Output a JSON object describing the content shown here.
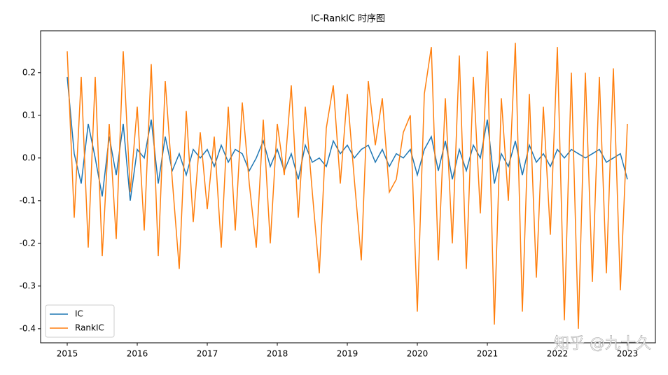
{
  "chart_data": {
    "type": "line",
    "title": "IC-RankIC 时序图",
    "x": [
      2015.0,
      2015.1,
      2015.2,
      2015.3,
      2015.4,
      2015.5,
      2015.6,
      2015.7,
      2015.8,
      2015.9,
      2016.0,
      2016.1,
      2016.2,
      2016.3,
      2016.4,
      2016.5,
      2016.6,
      2016.7,
      2016.8,
      2016.9,
      2017.0,
      2017.1,
      2017.2,
      2017.3,
      2017.4,
      2017.5,
      2017.6,
      2017.7,
      2017.8,
      2017.9,
      2018.0,
      2018.1,
      2018.2,
      2018.3,
      2018.4,
      2018.5,
      2018.6,
      2018.7,
      2018.8,
      2018.9,
      2019.0,
      2019.1,
      2019.2,
      2019.3,
      2019.4,
      2019.5,
      2019.6,
      2019.7,
      2019.8,
      2019.9,
      2020.0,
      2020.1,
      2020.2,
      2020.3,
      2020.4,
      2020.5,
      2020.6,
      2020.7,
      2020.8,
      2020.9,
      2021.0,
      2021.1,
      2021.2,
      2021.3,
      2021.4,
      2021.5,
      2021.6,
      2021.7,
      2021.8,
      2021.9,
      2022.0,
      2022.1,
      2022.2,
      2022.3,
      2022.4,
      2022.5,
      2022.6,
      2022.7,
      2022.8,
      2022.9,
      2023.0
    ],
    "series": [
      {
        "name": "IC",
        "color": "#1f77b4",
        "values": [
          0.19,
          0.01,
          -0.06,
          0.08,
          0.0,
          -0.09,
          0.05,
          -0.04,
          0.08,
          -0.1,
          0.02,
          0.0,
          0.09,
          -0.06,
          0.05,
          -0.03,
          0.01,
          -0.04,
          0.02,
          0.0,
          0.02,
          -0.02,
          0.03,
          -0.01,
          0.02,
          0.01,
          -0.03,
          0.0,
          0.04,
          -0.02,
          0.02,
          -0.03,
          0.01,
          -0.05,
          0.03,
          -0.01,
          0.0,
          -0.02,
          0.04,
          0.01,
          0.03,
          0.0,
          0.02,
          0.03,
          -0.01,
          0.02,
          -0.02,
          0.01,
          0.0,
          0.02,
          -0.04,
          0.02,
          0.05,
          -0.03,
          0.04,
          -0.05,
          0.02,
          -0.03,
          0.03,
          0.0,
          0.09,
          -0.06,
          0.01,
          -0.02,
          0.04,
          -0.04,
          0.03,
          -0.01,
          0.01,
          -0.02,
          0.02,
          0.0,
          0.02,
          0.01,
          0.0,
          0.01,
          0.02,
          -0.01,
          0.0,
          0.01,
          -0.05
        ]
      },
      {
        "name": "RankIC",
        "color": "#ff7f0e",
        "values": [
          0.25,
          -0.14,
          0.19,
          -0.21,
          0.19,
          -0.23,
          0.08,
          -0.19,
          0.25,
          -0.08,
          0.12,
          -0.17,
          0.22,
          -0.23,
          0.18,
          -0.05,
          -0.26,
          0.11,
          -0.15,
          0.06,
          -0.12,
          0.05,
          -0.21,
          0.12,
          -0.17,
          0.13,
          -0.06,
          -0.21,
          0.09,
          -0.2,
          0.08,
          -0.04,
          0.17,
          -0.14,
          0.12,
          -0.08,
          -0.27,
          0.07,
          0.17,
          -0.06,
          0.15,
          -0.05,
          -0.24,
          0.18,
          0.03,
          0.14,
          -0.08,
          -0.05,
          0.06,
          0.1,
          -0.36,
          0.15,
          0.26,
          -0.24,
          0.14,
          -0.2,
          0.24,
          -0.26,
          0.19,
          -0.13,
          0.25,
          -0.39,
          0.14,
          -0.1,
          0.27,
          -0.36,
          0.15,
          -0.28,
          0.12,
          -0.18,
          0.26,
          -0.38,
          0.2,
          -0.4,
          0.2,
          -0.29,
          0.19,
          -0.27,
          0.21,
          -0.31,
          0.08
        ]
      }
    ],
    "xlim": [
      2014.62,
      2023.4
    ],
    "xticks": [
      2015,
      2016,
      2017,
      2018,
      2019,
      2020,
      2021,
      2022,
      2023
    ],
    "ylim": [
      -0.433,
      0.298
    ],
    "yticks": [
      -0.4,
      -0.3,
      -0.2,
      -0.1,
      {
        "value": 0,
        "label": "0.0"
      },
      0.1,
      0.2
    ],
    "legend": "lower left",
    "watermark": "知乎 @九十久"
  }
}
